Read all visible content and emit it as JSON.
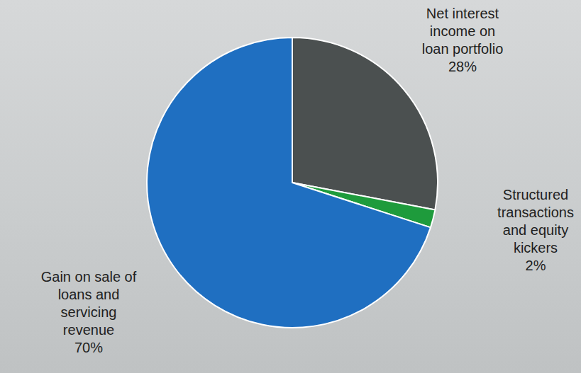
{
  "chart_data": {
    "type": "pie",
    "categories": [
      "Net interest income on loan portfolio",
      "Structured transactions and equity kickers",
      "Gain on sale of loans and servicing revenue"
    ],
    "values": [
      28,
      2,
      70
    ],
    "value_labels": [
      "28%",
      "2%",
      "70%"
    ],
    "colors": [
      "#4b5050",
      "#1e9b3c",
      "#1f6fc1"
    ],
    "data_labels": true
  }
}
